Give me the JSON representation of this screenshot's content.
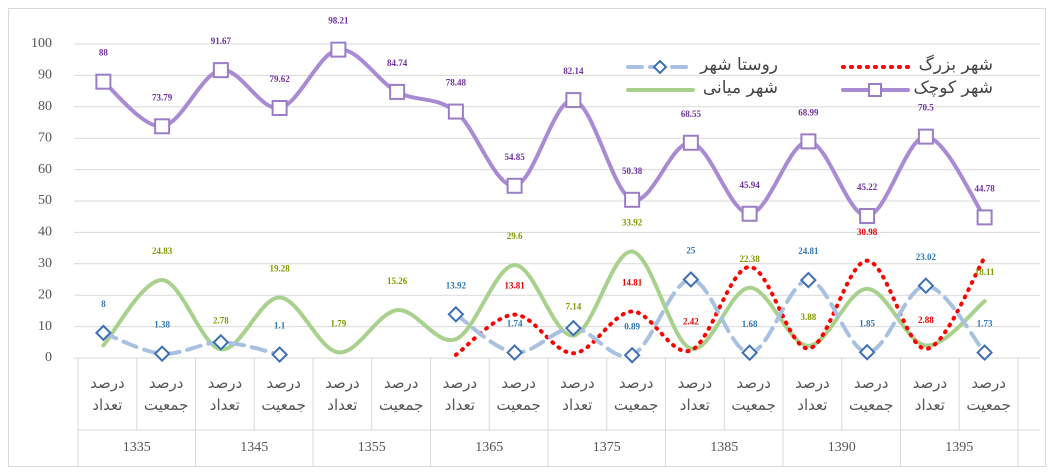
{
  "chart_data": {
    "type": "line",
    "categories": [
      "درصد تعداد",
      "درصد جمعیت",
      "درصد تعداد",
      "درصد جمعیت",
      "درصد تعداد",
      "درصد جمعیت",
      "درصد تعداد",
      "درصد جمعیت",
      "درصد تعداد",
      "درصد جمعیت",
      "درصد تعداد",
      "درصد جمعیت",
      "درصد تعداد",
      "درصد جمعیت",
      "درصد تعداد",
      "درصد جمعیت"
    ],
    "groups": [
      "1335",
      "1345",
      "1355",
      "1365",
      "1375",
      "1385",
      "1390",
      "1395"
    ],
    "ylim": [
      0,
      100
    ],
    "yticks": [
      0,
      10,
      20,
      30,
      40,
      50,
      60,
      70,
      80,
      90,
      100
    ],
    "grid": true,
    "series": [
      {
        "name": "شهر میانی",
        "color": "#a9d18e",
        "label_color": "#7f9a00",
        "style": "solid",
        "values": [
          4,
          24.83,
          2.78,
          19.28,
          1.79,
          15.26,
          6,
          29.6,
          7.14,
          33.92,
          3,
          22.38,
          3.88,
          22,
          4,
          18.11
        ],
        "value_labels": [
          null,
          "24.83",
          "2.78",
          "19.28",
          "1.79",
          "15.26",
          null,
          "29.6",
          "7.14",
          "33.92",
          null,
          "22.38",
          "3.88",
          null,
          null,
          "18.11"
        ]
      },
      {
        "name": "شهر بزرگ",
        "color": "#ff0000",
        "label_color": "#e00000",
        "style": "dotted",
        "values": [
          null,
          null,
          null,
          null,
          null,
          null,
          1,
          13.81,
          1.5,
          14.81,
          2.42,
          29,
          3,
          30.98,
          2.88,
          32
        ],
        "value_labels": [
          null,
          null,
          null,
          null,
          null,
          null,
          null,
          "13.81",
          null,
          "14.81",
          "2.42",
          null,
          null,
          "30.98",
          "2.88",
          null
        ]
      },
      {
        "name": "روستا شهر",
        "color": "#a9c1e0",
        "marker_color": "#3d6fb5",
        "label_color": "#2e75b6",
        "style": "dashed",
        "marker": "diamond",
        "values": [
          8,
          1.38,
          5,
          1.1,
          null,
          null,
          13.92,
          1.74,
          9.5,
          0.89,
          25,
          1.68,
          24.81,
          1.85,
          23.02,
          1.73
        ],
        "value_labels": [
          "8",
          "1.38",
          null,
          "1.1",
          null,
          null,
          "13.92",
          "1.74",
          null,
          "0.89",
          "25",
          "1.68",
          "24.81",
          "1.85",
          "23.02",
          "1.73"
        ]
      },
      {
        "name": "شهر کوچک",
        "color": "#a98bd3",
        "marker_color": "#9b7dc6",
        "label_color": "#7030a0",
        "style": "solid",
        "marker": "square",
        "values": [
          88,
          73.79,
          91.67,
          79.62,
          98.21,
          84.74,
          78.48,
          54.85,
          82.14,
          50.38,
          68.55,
          45.94,
          68.99,
          45.22,
          70.5,
          44.78
        ],
        "value_labels": [
          "88",
          "73.79",
          "91.67",
          "79.62",
          "98.21",
          "84.74",
          "78.48",
          "54.85",
          "82.14",
          "50.38",
          "68.55",
          "45.94",
          "68.99",
          "45.22",
          "70.5",
          "44.78"
        ]
      }
    ]
  }
}
